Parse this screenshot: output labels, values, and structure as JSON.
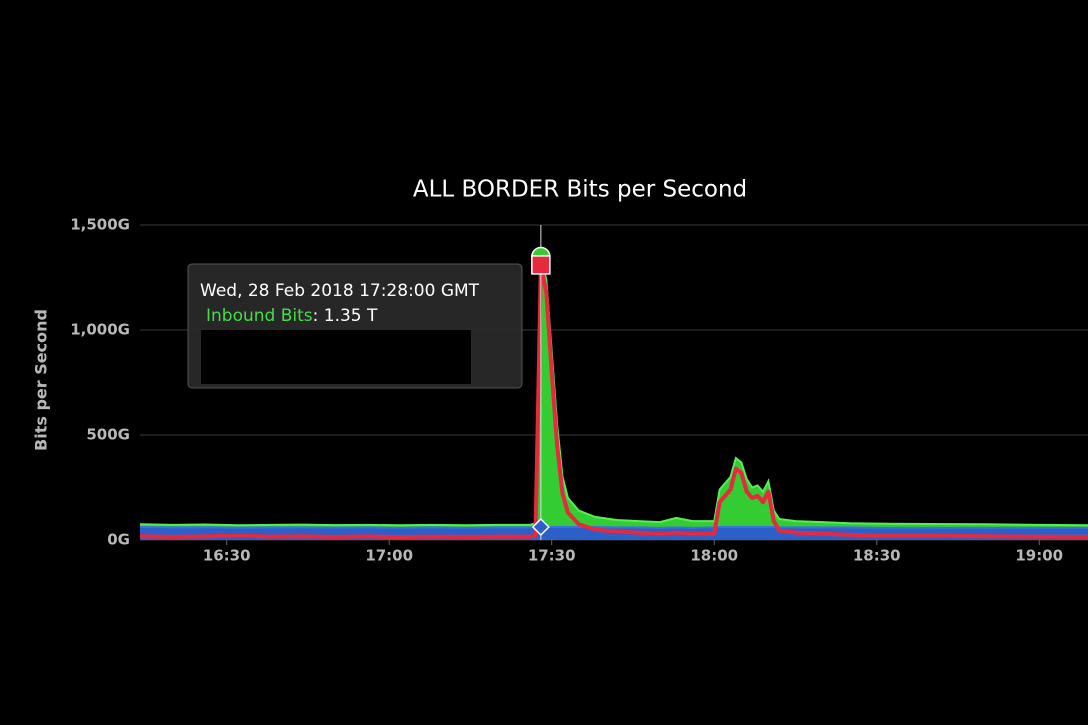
{
  "chart_data": {
    "type": "area",
    "title": "ALL BORDER Bits per Second",
    "y_label": "Bits per Second",
    "x": [
      "16:14",
      "16:20",
      "16:26",
      "16:32",
      "16:38",
      "16:44",
      "16:50",
      "16:56",
      "17:02",
      "17:08",
      "17:14",
      "17:20",
      "17:26",
      "17:27",
      "17:28",
      "17:29",
      "17:30",
      "17:31",
      "17:32",
      "17:33",
      "17:35",
      "17:38",
      "17:42",
      "17:46",
      "17:50",
      "17:53",
      "17:56",
      "18:00",
      "18:01",
      "18:03",
      "18:04",
      "18:05",
      "18:06",
      "18:07",
      "18:08",
      "18:09",
      "18:10",
      "18:11",
      "18:12",
      "18:15",
      "18:20",
      "18:25",
      "18:30",
      "18:40",
      "18:50",
      "19:00",
      "19:09"
    ],
    "series": [
      {
        "name": "Inbound Bits",
        "color": "#33cc33",
        "values": [
          75,
          72,
          74,
          70,
          72,
          73,
          71,
          72,
          70,
          72,
          70,
          72,
          72,
          80,
          1350,
          1240,
          900,
          550,
          300,
          200,
          140,
          110,
          95,
          90,
          85,
          105,
          90,
          90,
          240,
          300,
          390,
          370,
          290,
          250,
          260,
          230,
          280,
          140,
          100,
          90,
          85,
          80,
          78,
          76,
          75,
          72,
          70
        ]
      },
      {
        "color": "#2d5fc8",
        "values": [
          62,
          60,
          61,
          59,
          60,
          60,
          59,
          60,
          58,
          60,
          58,
          60,
          60,
          62,
          62,
          62,
          62,
          62,
          62,
          62,
          62,
          62,
          60,
          60,
          58,
          60,
          58,
          60,
          62,
          62,
          62,
          62,
          62,
          62,
          62,
          62,
          62,
          62,
          60,
          60,
          60,
          60,
          58,
          58,
          58,
          58,
          58
        ]
      },
      {
        "color": "#e8283c",
        "values": [
          18,
          15,
          17,
          22,
          16,
          18,
          15,
          17,
          14,
          16,
          15,
          16,
          16,
          20,
          1310,
          1180,
          800,
          450,
          220,
          130,
          75,
          50,
          40,
          35,
          30,
          35,
          30,
          30,
          180,
          240,
          340,
          320,
          230,
          200,
          210,
          180,
          230,
          90,
          45,
          35,
          30,
          25,
          20,
          20,
          18,
          16,
          15
        ]
      }
    ],
    "xlim": [
      "16:14",
      "19:09"
    ],
    "xticks": [
      "16:30",
      "17:00",
      "17:30",
      "18:00",
      "18:30",
      "19:00"
    ],
    "ylim": [
      0,
      1500
    ],
    "yticks": [
      {
        "value": 0,
        "label": "0G"
      },
      {
        "value": 500,
        "label": "500G"
      },
      {
        "value": 1000,
        "label": "1,000G"
      },
      {
        "value": 1500,
        "label": "1,500G"
      }
    ],
    "grid": true,
    "tooltip": {
      "index": 14,
      "header": "Wed, 28 Feb 2018 17:28:00 GMT",
      "value": ": 1.35 T"
    }
  }
}
